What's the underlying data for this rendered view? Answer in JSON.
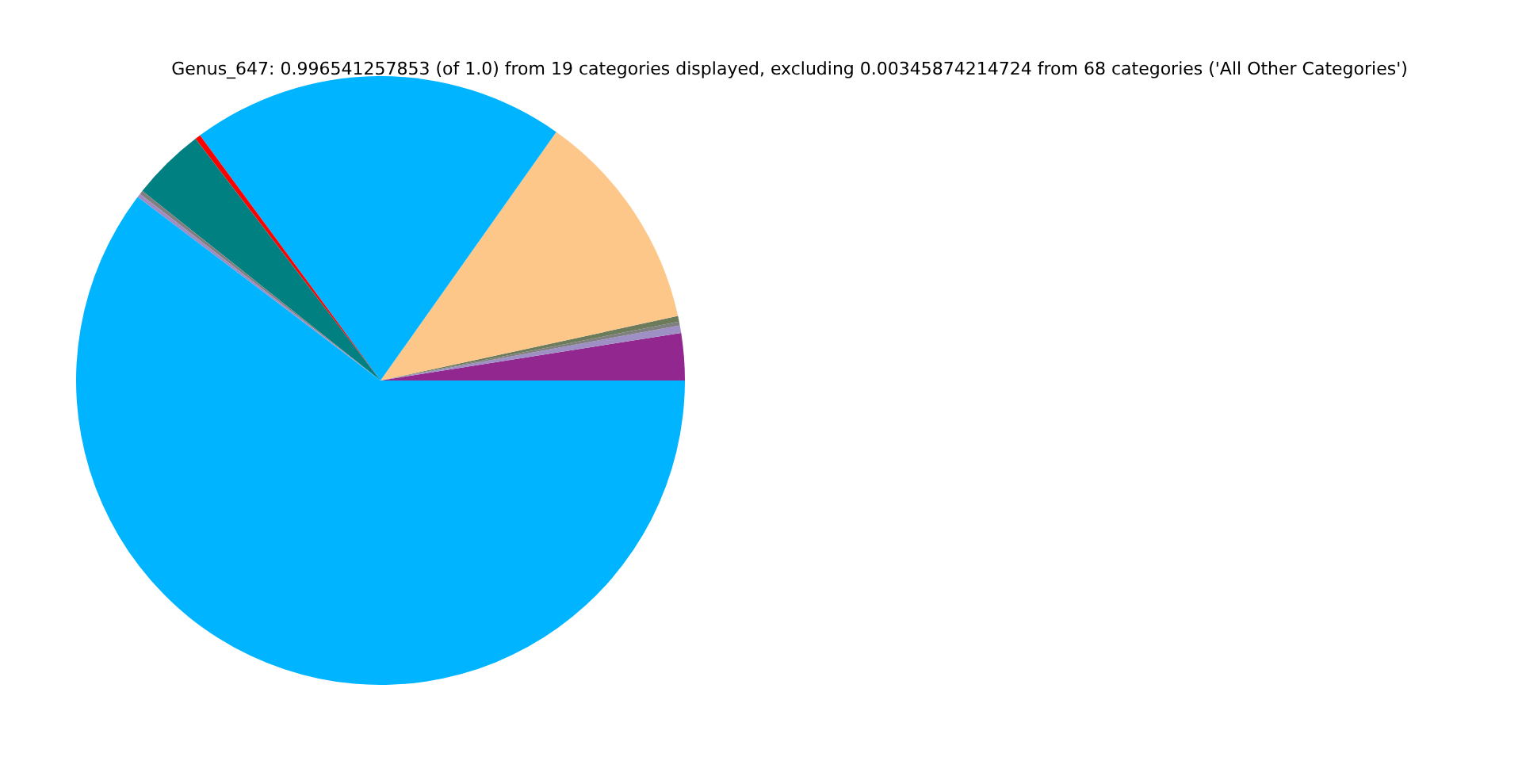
{
  "chart_data": {
    "type": "pie",
    "title": "Genus_647: 0.996541257853 (of 1.0) from 19 categories displayed, excluding 0.00345874214724 from 68 categories ('All Other Categories')",
    "categories": [
      null,
      null,
      null,
      null,
      null,
      null,
      null,
      null,
      null,
      null,
      null
    ],
    "values": [
      2.5,
      0.4,
      0.2,
      0.3,
      11.8,
      19.9,
      0.3,
      3.9,
      0.2,
      0.2,
      60.3
    ],
    "colors": [
      "#92278f",
      "#9e8fc4",
      "#7f7f7f",
      "#6b7b5b",
      "#fdc78a",
      "#00b4ff",
      "#ff0000",
      "#008080",
      "#7f7f7f",
      "#a08cc0",
      "#00b4ff"
    ]
  }
}
